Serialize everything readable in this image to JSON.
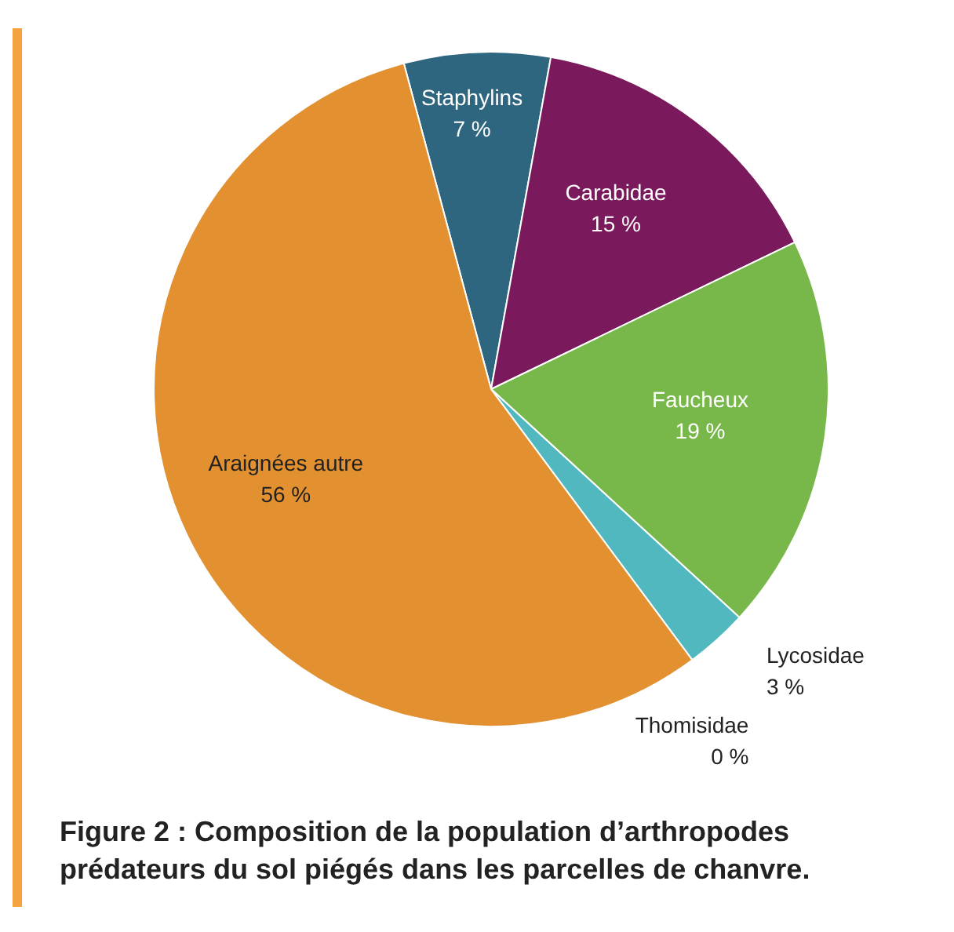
{
  "chart_data": {
    "type": "pie",
    "title": "Figure 2 : Composition de la population d’arthropodes prédateurs du sol piégés dans les parcelles de chanvre.",
    "categories": [
      "Staphylins",
      "Carabidae",
      "Faucheux",
      "Lycosidae",
      "Thomisidae",
      "Araignées autre"
    ],
    "values": [
      7,
      15,
      19,
      3,
      0,
      56
    ],
    "value_labels": [
      "7 %",
      "15 %",
      "19 %",
      "3 %",
      "0 %",
      "56 %"
    ],
    "colors": [
      "#2e6680",
      "#7a1a5c",
      "#78b84a",
      "#52b8c0",
      "#8b4a1a",
      "#e29030"
    ]
  }
}
